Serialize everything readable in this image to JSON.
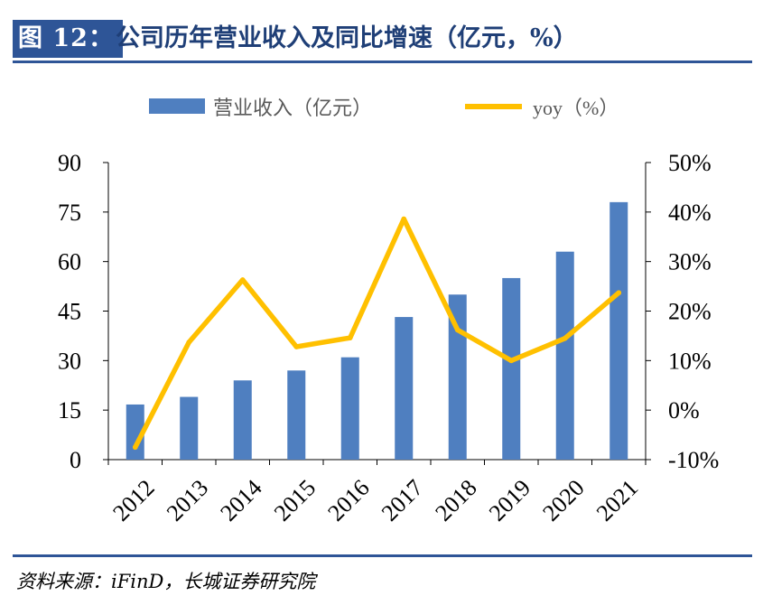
{
  "header": {
    "label": "图 12：",
    "title": "公司历年营业收入及同比增速（亿元，%）"
  },
  "footer": {
    "source": "资料来源：iFinD，长城证券研究院"
  },
  "colors": {
    "bar": "#4f7fc0",
    "line": "#ffc000",
    "accent": "#2e5597"
  },
  "chart_data": {
    "type": "bar",
    "categories": [
      "2012",
      "2013",
      "2014",
      "2015",
      "2016",
      "2017",
      "2018",
      "2019",
      "2020",
      "2021"
    ],
    "series": [
      {
        "name": "营业收入（亿元）",
        "type": "bar",
        "axis": "left",
        "values": [
          16.7,
          19.0,
          24.0,
          27.0,
          31.0,
          43.2,
          50.0,
          55.0,
          63.0,
          78.0
        ]
      },
      {
        "name": "yoy（%）",
        "type": "line",
        "axis": "right",
        "values": [
          -7.5,
          13.7,
          26.3,
          12.8,
          14.6,
          38.6,
          16.2,
          10.0,
          14.5,
          23.7
        ]
      }
    ],
    "left_axis": {
      "ylim": [
        0,
        90
      ],
      "ticks": [
        "0",
        "15",
        "30",
        "45",
        "60",
        "75",
        "90"
      ],
      "tick_values": [
        0,
        15,
        30,
        45,
        60,
        75,
        90
      ]
    },
    "right_axis": {
      "ylim": [
        -10,
        50
      ],
      "ticks": [
        "-10%",
        "0%",
        "10%",
        "20%",
        "30%",
        "40%",
        "50%"
      ],
      "tick_values": [
        -10,
        0,
        10,
        20,
        30,
        40,
        50
      ]
    },
    "legend_position": "top",
    "grid": false
  }
}
